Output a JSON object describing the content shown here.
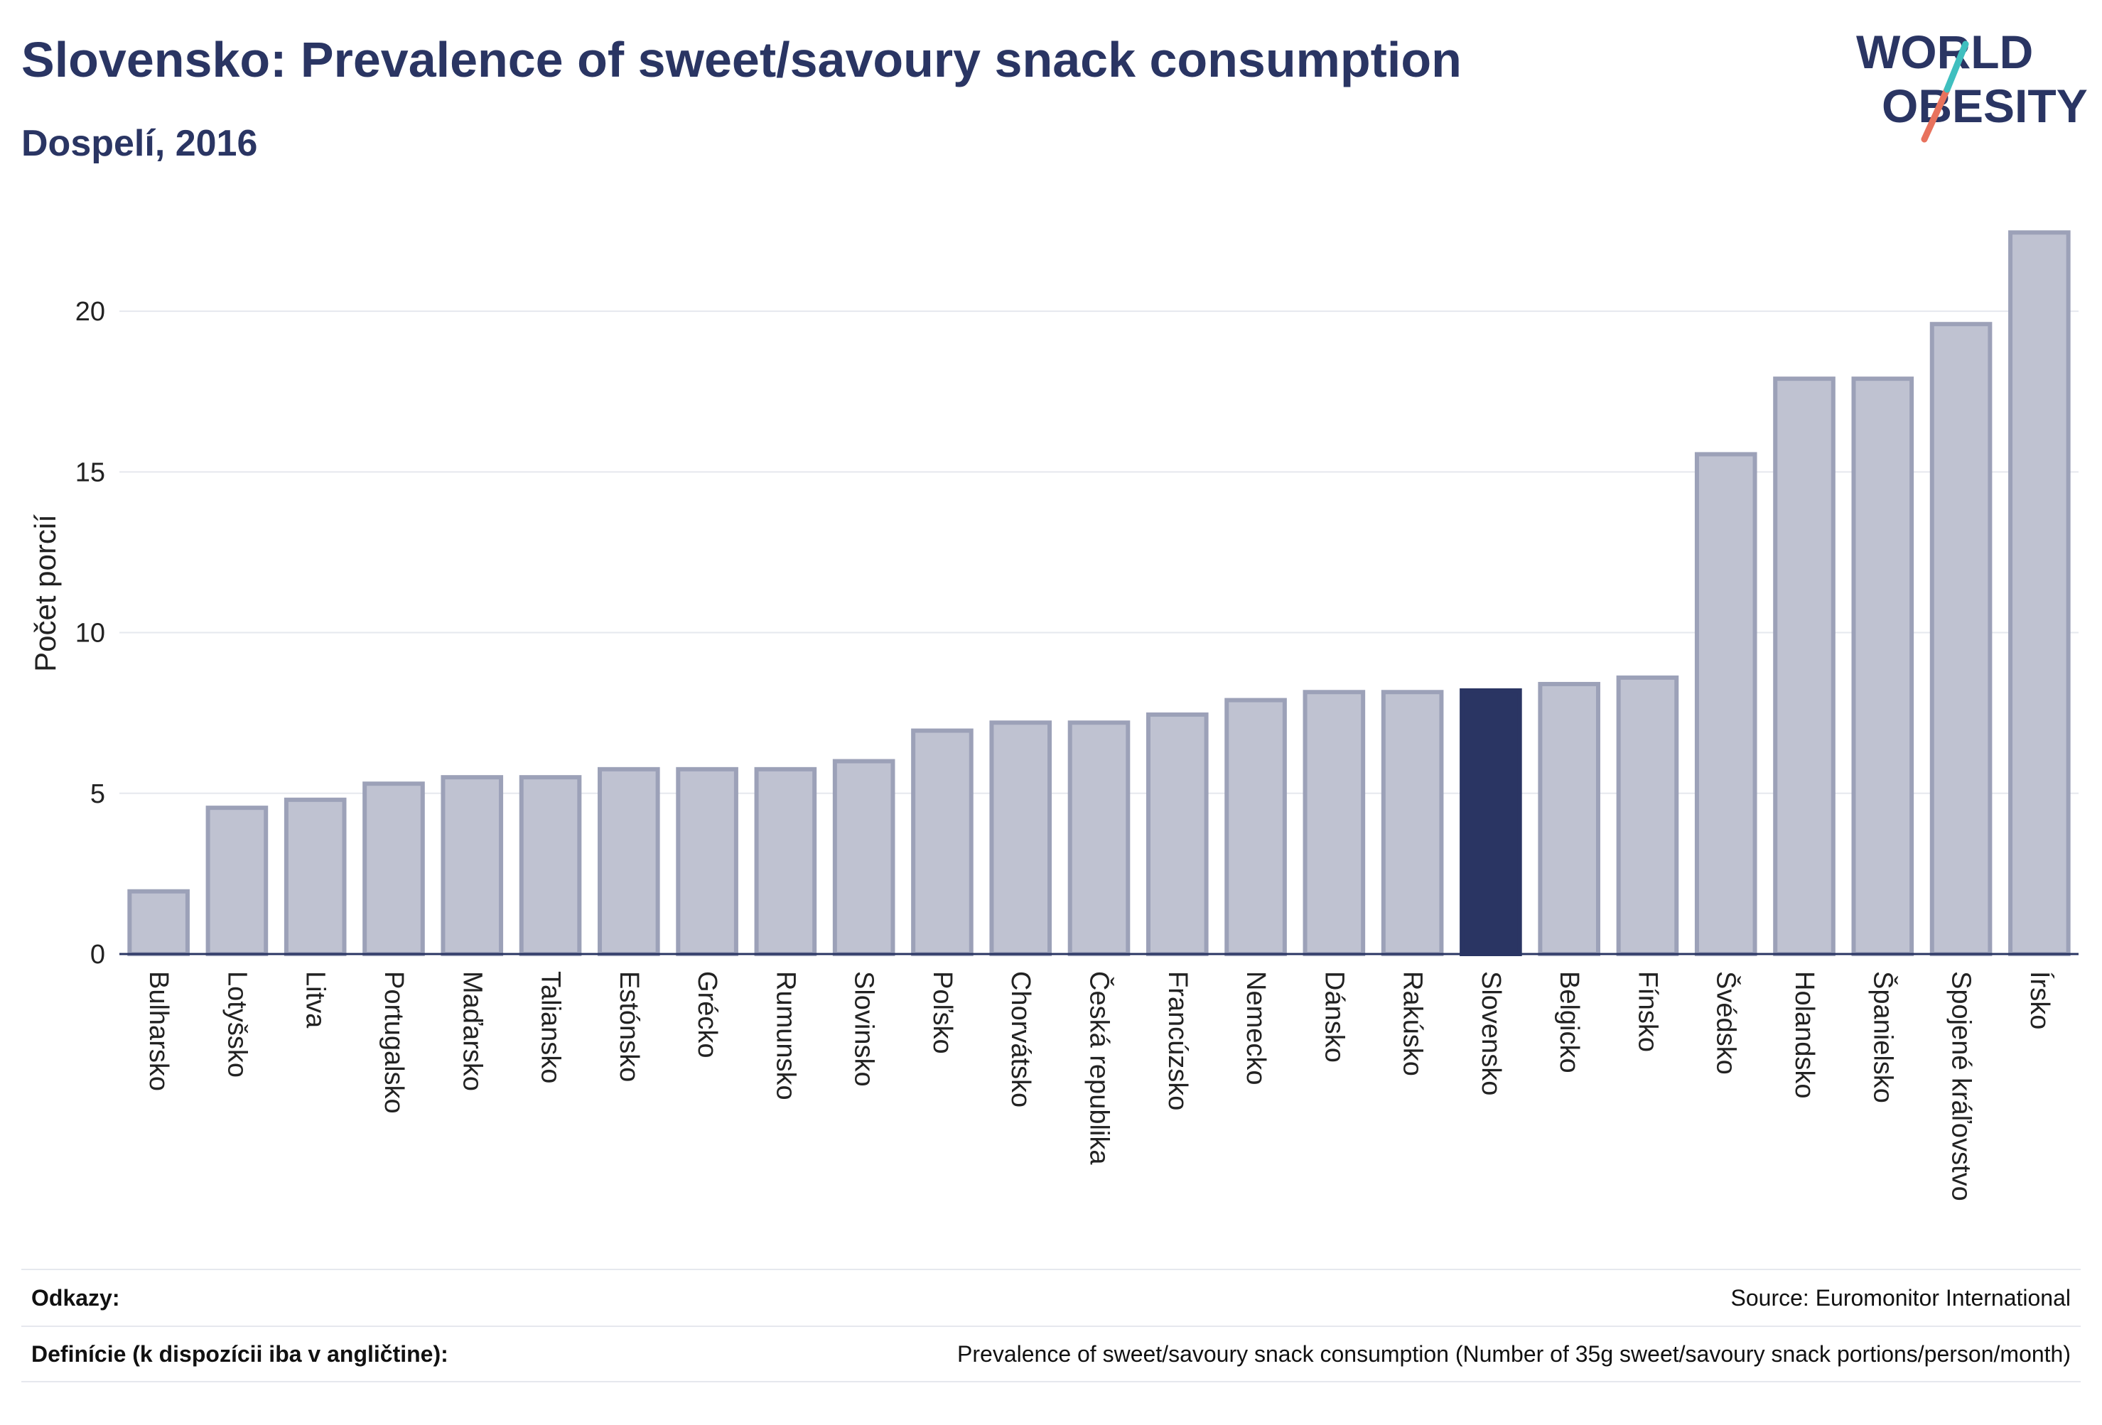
{
  "header": {
    "title": "Slovensko: Prevalence of sweet/savoury snack consumption",
    "subtitle": "Dospelí, 2016"
  },
  "logo": {
    "line1": "WORLD",
    "line2": "OBESITY"
  },
  "colors": {
    "bar": "#bfc2d1",
    "bar_stroke": "#9ca1b8",
    "highlight": "#2a3563",
    "title": "#2a3563",
    "grid": "#e6e8ee",
    "logo_teal": "#3fbfbf",
    "logo_coral": "#e8725d"
  },
  "chart_data": {
    "type": "bar",
    "ylabel": "Počet porcií",
    "xlabel": "",
    "ylim": [
      0,
      22.5
    ],
    "yticks": [
      0,
      5,
      10,
      15,
      20
    ],
    "grid": true,
    "highlight": "Slovensko",
    "categories": [
      "Bulharsko",
      "Lotyšsko",
      "Litva",
      "Portugalsko",
      "Maďarsko",
      "Taliansko",
      "Estónsko",
      "Grécko",
      "Rumunsko",
      "Slovinsko",
      "Poľsko",
      "Chorvátsko",
      "Česká republika",
      "Francúzsko",
      "Nemecko",
      "Dánsko",
      "Rakúsko",
      "Slovensko",
      "Belgicko",
      "Fínsko",
      "Švédsko",
      "Holandsko",
      "Španielsko",
      "Spojené kráľovstvo",
      "Írsko"
    ],
    "values": [
      1.95,
      4.55,
      4.8,
      5.3,
      5.5,
      5.5,
      5.75,
      5.75,
      5.75,
      6.0,
      6.95,
      7.2,
      7.2,
      7.45,
      7.9,
      8.15,
      8.15,
      8.2,
      8.4,
      8.6,
      15.55,
      17.9,
      17.9,
      19.6,
      22.45
    ]
  },
  "footer": {
    "references_label": "Odkazy:",
    "references_value": "Source: Euromonitor International",
    "definition_label": "Definície (k dispozícii iba v angličtine):",
    "definition_value": "Prevalence of sweet/savoury snack consumption (Number of 35g sweet/savoury snack portions/person/month)"
  }
}
